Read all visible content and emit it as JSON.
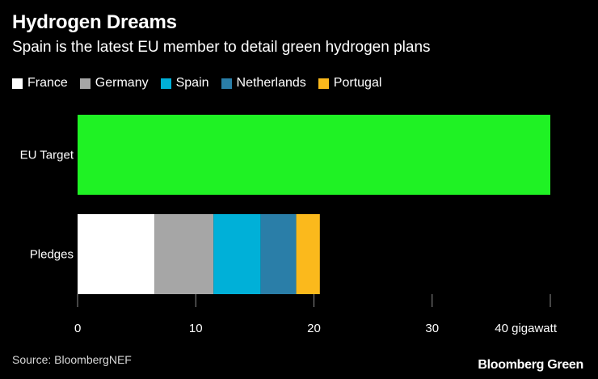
{
  "chart_data": {
    "type": "bar",
    "orientation": "horizontal",
    "stacked": true,
    "title": "Hydrogen Dreams",
    "subtitle": "Spain is the latest EU member to detail green hydrogen plans",
    "categories": [
      "EU Target",
      "Pledges"
    ],
    "target": {
      "name": "EU Target",
      "value": 40,
      "color": "#1ff224"
    },
    "series": [
      {
        "name": "France",
        "values": [
          null,
          6.5
        ],
        "color": "#ffffff"
      },
      {
        "name": "Germany",
        "values": [
          null,
          5
        ],
        "color": "#a6a6a6"
      },
      {
        "name": "Spain",
        "values": [
          null,
          4
        ],
        "color": "#00b0d8"
      },
      {
        "name": "Netherlands",
        "values": [
          null,
          3
        ],
        "color": "#2a7ea8"
      },
      {
        "name": "Portugal",
        "values": [
          null,
          2
        ],
        "color": "#fbb91c"
      }
    ],
    "x_ticks": [
      {
        "value": 0,
        "label": "0"
      },
      {
        "value": 10,
        "label": "10"
      },
      {
        "value": 20,
        "label": "20"
      },
      {
        "value": 30,
        "label": "30"
      },
      {
        "value": 40,
        "label": "40 gigawatt"
      }
    ],
    "xlim": [
      0,
      40
    ],
    "xlabel": "",
    "ylabel": "",
    "legend_position": "top-left"
  },
  "footer": {
    "source": "Source: BloombergNEF",
    "brand": "Bloomberg Green"
  }
}
